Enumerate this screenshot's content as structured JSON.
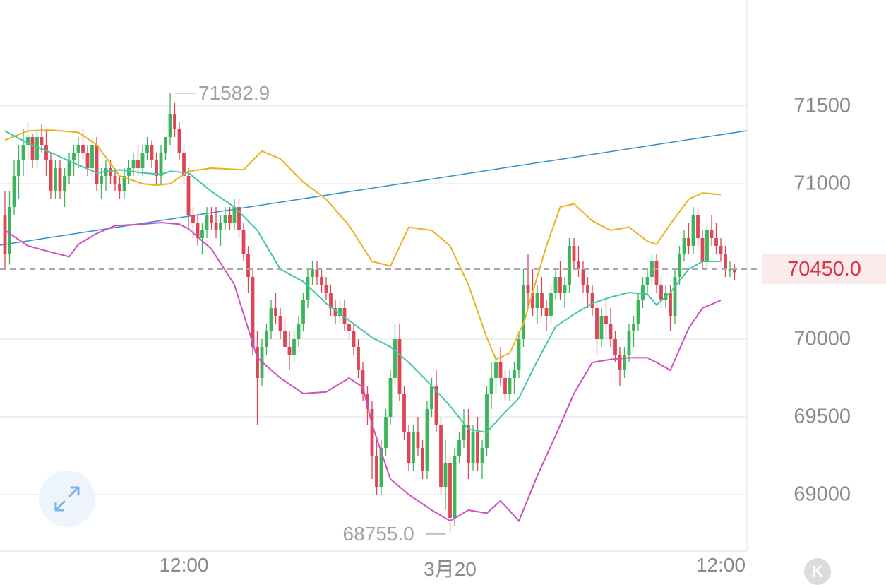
{
  "chart_data": {
    "type": "candlestick",
    "y_axis": {
      "ticks": [
        "71500",
        "71000",
        "70000",
        "69500",
        "69000"
      ],
      "tick_values": [
        71500,
        71000,
        70000,
        69500,
        69000
      ],
      "range": [
        68650,
        71900
      ]
    },
    "x_axis": {
      "labels": [
        "12:00",
        "3月20",
        "12:00"
      ],
      "label_candle_index": [
        39,
        97,
        156
      ]
    },
    "current_price": {
      "value": 70450.0,
      "label": "70450.0",
      "color": "#d9343f"
    },
    "high_marker": {
      "value": 71582.9,
      "label": "71582.9",
      "candle_index": 36
    },
    "low_marker": {
      "value": 68755.0,
      "label": "68755.0",
      "candle_index": 97
    },
    "colors": {
      "up": "#3cb45a",
      "down": "#dc4655",
      "bb_upper": "#eab21c",
      "bb_middle": "#3fc8a7",
      "bb_lower": "#cf4fc1",
      "trendline": "#2f8fd0",
      "grid": "#ececec",
      "dashed_price_line": "#a8a8a8"
    },
    "candles": [
      [
        70800,
        70950,
        70450,
        70550
      ],
      [
        70550,
        70950,
        70480,
        70850
      ],
      [
        70850,
        71150,
        70800,
        71050
      ],
      [
        71050,
        71250,
        70900,
        71150
      ],
      [
        71150,
        71350,
        71050,
        71250
      ],
      [
        71250,
        71400,
        71150,
        71300
      ],
      [
        71300,
        71320,
        71100,
        71150
      ],
      [
        71150,
        71350,
        71100,
        71300
      ],
      [
        71300,
        71380,
        71200,
        71250
      ],
      [
        71250,
        71350,
        71050,
        71150
      ],
      [
        71150,
        71200,
        70900,
        70950
      ],
      [
        70950,
        71150,
        70900,
        71100
      ],
      [
        71100,
        71150,
        70900,
        70950
      ],
      [
        70950,
        71100,
        70850,
        71050
      ],
      [
        71050,
        71200,
        71000,
        71150
      ],
      [
        71150,
        71250,
        71050,
        71200
      ],
      [
        71200,
        71300,
        71100,
        71250
      ],
      [
        71250,
        71350,
        71150,
        71200
      ],
      [
        71200,
        71250,
        71050,
        71100
      ],
      [
        71100,
        71300,
        71050,
        71250
      ],
      [
        71250,
        71300,
        70950,
        71000
      ],
      [
        71000,
        71100,
        70900,
        71050
      ],
      [
        71050,
        71150,
        70950,
        71100
      ],
      [
        71100,
        71150,
        71000,
        71050
      ],
      [
        71050,
        71100,
        70950,
        71000
      ],
      [
        71000,
        71050,
        70900,
        70950
      ],
      [
        70950,
        71100,
        70900,
        71050
      ],
      [
        71050,
        71150,
        71000,
        71100
      ],
      [
        71100,
        71200,
        71050,
        71150
      ],
      [
        71150,
        71250,
        71050,
        71100
      ],
      [
        71100,
        71250,
        71050,
        71200
      ],
      [
        71200,
        71300,
        71150,
        71250
      ],
      [
        71250,
        71280,
        71100,
        71150
      ],
      [
        71150,
        71200,
        71000,
        71050
      ],
      [
        71050,
        71250,
        71000,
        71200
      ],
      [
        71200,
        71300,
        71150,
        71300
      ],
      [
        71300,
        71582.9,
        71250,
        71450
      ],
      [
        71450,
        71520,
        71300,
        71350
      ],
      [
        71350,
        71400,
        71150,
        71200
      ],
      [
        71200,
        71250,
        71000,
        71050
      ],
      [
        71050,
        71100,
        70700,
        70800
      ],
      [
        70800,
        70850,
        70650,
        70750
      ],
      [
        70750,
        70800,
        70600,
        70650
      ],
      [
        70650,
        70750,
        70550,
        70700
      ],
      [
        70700,
        70850,
        70650,
        70800
      ],
      [
        70800,
        70850,
        70700,
        70750
      ],
      [
        70750,
        70850,
        70650,
        70700
      ],
      [
        70700,
        70800,
        70600,
        70750
      ],
      [
        70750,
        70850,
        70700,
        70800
      ],
      [
        70800,
        70850,
        70700,
        70750
      ],
      [
        70750,
        70900,
        70700,
        70850
      ],
      [
        70850,
        70900,
        70650,
        70700
      ],
      [
        70700,
        70750,
        70500,
        70550
      ],
      [
        70550,
        70600,
        70300,
        70400
      ],
      [
        70400,
        70450,
        69900,
        69950
      ],
      [
        69950,
        70050,
        69450,
        69750
      ],
      [
        69750,
        70000,
        69700,
        69950
      ],
      [
        69950,
        70100,
        69900,
        70050
      ],
      [
        70050,
        70250,
        70000,
        70200
      ],
      [
        70200,
        70300,
        70100,
        70150
      ],
      [
        70150,
        70200,
        70000,
        70050
      ],
      [
        70050,
        70150,
        69950,
        69950
      ],
      [
        69950,
        70050,
        69800,
        69900
      ],
      [
        69900,
        70050,
        69850,
        70000
      ],
      [
        70000,
        70150,
        69950,
        70100
      ],
      [
        70100,
        70300,
        70050,
        70250
      ],
      [
        70250,
        70450,
        70200,
        70400
      ],
      [
        70400,
        70500,
        70350,
        70450
      ],
      [
        70450,
        70500,
        70350,
        70400
      ],
      [
        70400,
        70450,
        70300,
        70350
      ],
      [
        70350,
        70400,
        70250,
        70300
      ],
      [
        70300,
        70350,
        70150,
        70200
      ],
      [
        70200,
        70250,
        70100,
        70150
      ],
      [
        70150,
        70250,
        70100,
        70200
      ],
      [
        70200,
        70250,
        70050,
        70100
      ],
      [
        70100,
        70150,
        70000,
        70050
      ],
      [
        70050,
        70100,
        69900,
        69950
      ],
      [
        69950,
        70000,
        69750,
        69800
      ],
      [
        69800,
        69850,
        69600,
        69650
      ],
      [
        69650,
        69700,
        69450,
        69550
      ],
      [
        69550,
        69600,
        69100,
        69250
      ],
      [
        69250,
        69350,
        69000,
        69050
      ],
      [
        69050,
        69350,
        69000,
        69300
      ],
      [
        69300,
        69550,
        69250,
        69500
      ],
      [
        69500,
        69800,
        69450,
        69750
      ],
      [
        69750,
        70100,
        69700,
        70000
      ],
      [
        70000,
        70100,
        69600,
        69650
      ],
      [
        69650,
        69700,
        69350,
        69400
      ],
      [
        69400,
        69450,
        69150,
        69200
      ],
      [
        69200,
        69450,
        69150,
        69400
      ],
      [
        69400,
        69500,
        69250,
        69300
      ],
      [
        69300,
        69350,
        69100,
        69150
      ],
      [
        69150,
        69600,
        69100,
        69550
      ],
      [
        69550,
        69750,
        69500,
        69700
      ],
      [
        69700,
        69800,
        69400,
        69450
      ],
      [
        69450,
        69500,
        69000,
        69050
      ],
      [
        69050,
        69350,
        68900,
        69200
      ],
      [
        69200,
        69250,
        68755,
        68850
      ],
      [
        68850,
        69300,
        68800,
        69250
      ],
      [
        69250,
        69400,
        69200,
        69350
      ],
      [
        69350,
        69550,
        69300,
        69450
      ],
      [
        69450,
        69550,
        69100,
        69200
      ],
      [
        69200,
        69450,
        69150,
        69400
      ],
      [
        69400,
        69500,
        69150,
        69200
      ],
      [
        69200,
        69350,
        69100,
        69300
      ],
      [
        69300,
        69700,
        69250,
        69650
      ],
      [
        69650,
        69850,
        69550,
        69750
      ],
      [
        69750,
        69900,
        69650,
        69850
      ],
      [
        69850,
        69950,
        69700,
        69750
      ],
      [
        69750,
        69800,
        69600,
        69650
      ],
      [
        69650,
        69800,
        69600,
        69750
      ],
      [
        69750,
        69850,
        69650,
        69800
      ],
      [
        69800,
        70050,
        69750,
        70000
      ],
      [
        70000,
        70450,
        69950,
        70350
      ],
      [
        70350,
        70550,
        70200,
        70300
      ],
      [
        70300,
        70450,
        70150,
        70200
      ],
      [
        70200,
        70350,
        70100,
        70300
      ],
      [
        70300,
        70400,
        70150,
        70200
      ],
      [
        70200,
        70250,
        70050,
        70150
      ],
      [
        70150,
        70350,
        70100,
        70300
      ],
      [
        70300,
        70450,
        70250,
        70400
      ],
      [
        70400,
        70500,
        70250,
        70300
      ],
      [
        70300,
        70400,
        70200,
        70350
      ],
      [
        70350,
        70650,
        70300,
        70600
      ],
      [
        70600,
        70650,
        70450,
        70500
      ],
      [
        70500,
        70600,
        70400,
        70450
      ],
      [
        70450,
        70500,
        70300,
        70350
      ],
      [
        70350,
        70400,
        70200,
        70300
      ],
      [
        70300,
        70350,
        70150,
        70200
      ],
      [
        70200,
        70250,
        69900,
        70000
      ],
      [
        70000,
        70200,
        69950,
        70150
      ],
      [
        70150,
        70250,
        70000,
        70100
      ],
      [
        70100,
        70200,
        69950,
        70000
      ],
      [
        70000,
        70050,
        69850,
        69900
      ],
      [
        69900,
        69950,
        69700,
        69800
      ],
      [
        69800,
        69950,
        69750,
        69900
      ],
      [
        69900,
        70100,
        69850,
        70050
      ],
      [
        70050,
        70150,
        69950,
        70100
      ],
      [
        70100,
        70300,
        70050,
        70250
      ],
      [
        70250,
        70400,
        70200,
        70350
      ],
      [
        70350,
        70450,
        70300,
        70400
      ],
      [
        70400,
        70550,
        70350,
        70500
      ],
      [
        70500,
        70550,
        70300,
        70350
      ],
      [
        70350,
        70400,
        70200,
        70250
      ],
      [
        70250,
        70350,
        70200,
        70300
      ],
      [
        70300,
        70350,
        70050,
        70150
      ],
      [
        70150,
        70450,
        70100,
        70400
      ],
      [
        70400,
        70600,
        70350,
        70550
      ],
      [
        70550,
        70700,
        70500,
        70650
      ],
      [
        70650,
        70750,
        70550,
        70600
      ],
      [
        70600,
        70850,
        70550,
        70800
      ],
      [
        70800,
        70850,
        70600,
        70650
      ],
      [
        70650,
        70700,
        70450,
        70500
      ],
      [
        70500,
        70750,
        70450,
        70700
      ],
      [
        70700,
        70800,
        70600,
        70650
      ],
      [
        70650,
        70750,
        70550,
        70600
      ],
      [
        70600,
        70650,
        70500,
        70550
      ],
      [
        70550,
        70600,
        70400,
        70450
      ],
      [
        70450,
        70500,
        70400,
        70450
      ],
      [
        70450,
        70480,
        70380,
        70430
      ]
    ],
    "bollinger_upper": [
      [
        0,
        71280
      ],
      [
        5,
        71340
      ],
      [
        10,
        71345
      ],
      [
        16,
        71330
      ],
      [
        20,
        71250
      ],
      [
        25,
        71050
      ],
      [
        30,
        71000
      ],
      [
        33,
        70990
      ],
      [
        36,
        71000
      ],
      [
        40,
        71080
      ],
      [
        45,
        71100
      ],
      [
        52,
        71090
      ],
      [
        56,
        71210
      ],
      [
        60,
        71160
      ],
      [
        65,
        71010
      ],
      [
        70,
        70900
      ],
      [
        75,
        70730
      ],
      [
        80,
        70500
      ],
      [
        84,
        70470
      ],
      [
        88,
        70720
      ],
      [
        93,
        70700
      ],
      [
        97,
        70600
      ],
      [
        101,
        70350
      ],
      [
        105,
        70010
      ],
      [
        107,
        69870
      ],
      [
        110,
        69910
      ],
      [
        113,
        70100
      ],
      [
        118,
        70600
      ],
      [
        121,
        70850
      ],
      [
        124,
        70870
      ],
      [
        128,
        70760
      ],
      [
        132,
        70700
      ],
      [
        136,
        70720
      ],
      [
        140,
        70630
      ],
      [
        142,
        70610
      ],
      [
        145,
        70740
      ],
      [
        149,
        70900
      ],
      [
        152,
        70940
      ],
      [
        156,
        70930
      ]
    ],
    "bollinger_middle": [
      [
        0,
        71340
      ],
      [
        5,
        71260
      ],
      [
        10,
        71200
      ],
      [
        16,
        71120
      ],
      [
        20,
        71070
      ],
      [
        25,
        71090
      ],
      [
        30,
        71070
      ],
      [
        34,
        71060
      ],
      [
        36,
        71080
      ],
      [
        40,
        71070
      ],
      [
        45,
        70950
      ],
      [
        50,
        70850
      ],
      [
        55,
        70700
      ],
      [
        60,
        70450
      ],
      [
        65,
        70370
      ],
      [
        70,
        70230
      ],
      [
        75,
        70120
      ],
      [
        80,
        70010
      ],
      [
        84,
        69950
      ],
      [
        88,
        69850
      ],
      [
        93,
        69700
      ],
      [
        97,
        69570
      ],
      [
        101,
        69420
      ],
      [
        105,
        69400
      ],
      [
        108,
        69500
      ],
      [
        112,
        69620
      ],
      [
        116,
        69860
      ],
      [
        120,
        70080
      ],
      [
        124,
        70160
      ],
      [
        128,
        70230
      ],
      [
        132,
        70270
      ],
      [
        136,
        70300
      ],
      [
        140,
        70290
      ],
      [
        142,
        70220
      ],
      [
        145,
        70300
      ],
      [
        149,
        70450
      ],
      [
        152,
        70500
      ],
      [
        156,
        70500
      ]
    ],
    "bollinger_lower": [
      [
        0,
        70700
      ],
      [
        5,
        70600
      ],
      [
        10,
        70560
      ],
      [
        14,
        70530
      ],
      [
        16,
        70610
      ],
      [
        20,
        70680
      ],
      [
        24,
        70730
      ],
      [
        30,
        70740
      ],
      [
        34,
        70750
      ],
      [
        38,
        70740
      ],
      [
        40,
        70710
      ],
      [
        45,
        70580
      ],
      [
        50,
        70350
      ],
      [
        55,
        69880
      ],
      [
        60,
        69750
      ],
      [
        65,
        69650
      ],
      [
        70,
        69660
      ],
      [
        75,
        69750
      ],
      [
        78,
        69690
      ],
      [
        80,
        69450
      ],
      [
        84,
        69100
      ],
      [
        88,
        69000
      ],
      [
        93,
        68900
      ],
      [
        97,
        68830
      ],
      [
        101,
        68900
      ],
      [
        105,
        68880
      ],
      [
        108,
        68960
      ],
      [
        112,
        68830
      ],
      [
        116,
        69120
      ],
      [
        120,
        69380
      ],
      [
        124,
        69650
      ],
      [
        128,
        69850
      ],
      [
        132,
        69870
      ],
      [
        136,
        69880
      ],
      [
        140,
        69880
      ],
      [
        142,
        69850
      ],
      [
        145,
        69800
      ],
      [
        149,
        70070
      ],
      [
        152,
        70200
      ],
      [
        156,
        70250
      ]
    ]
  }
}
